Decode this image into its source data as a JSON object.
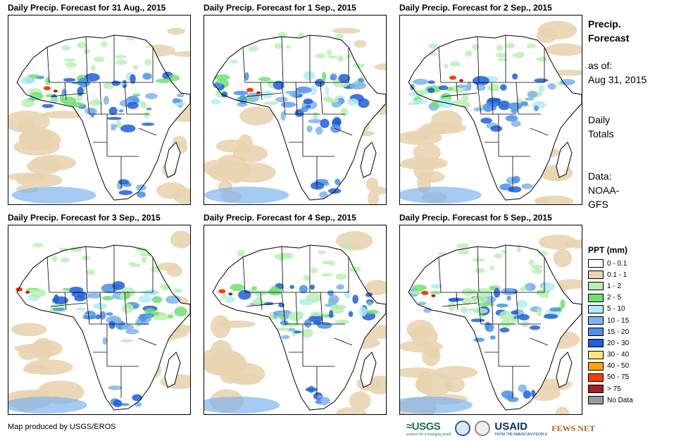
{
  "panels": [
    {
      "title": "Daily Precip. Forecast for 31 Aug., 2015",
      "variant": 0
    },
    {
      "title": "Daily Precip. Forecast for 1 Sep., 2015",
      "variant": 1
    },
    {
      "title": "Daily Precip. Forecast for 2 Sep., 2015",
      "variant": 2
    },
    {
      "title": "Daily Precip. Forecast for 3 Sep., 2015",
      "variant": 3
    },
    {
      "title": "Daily Precip. Forecast for 4 Sep., 2015",
      "variant": 4
    },
    {
      "title": "Daily Precip. Forecast for 5 Sep., 2015",
      "variant": 5
    }
  ],
  "side": {
    "title_line1": "Precip.",
    "title_line2": "Forecast",
    "asof_label": "as of:",
    "asof_date": "Aug 31, 2015",
    "totals_line1": "Daily",
    "totals_line2": "Totals",
    "data_label": "Data:",
    "data_line1": "NOAA-",
    "data_line2": "GFS"
  },
  "legend": {
    "title": "PPT (mm)",
    "items": [
      {
        "label": "0 - 0.1",
        "color": "#ffffff"
      },
      {
        "label": "0.1 - 1",
        "color": "#e8d4b0"
      },
      {
        "label": "1 - 2",
        "color": "#b6f0b0"
      },
      {
        "label": "2 - 5",
        "color": "#6fe06f"
      },
      {
        "label": "5 - 10",
        "color": "#b0ecf5"
      },
      {
        "label": "10 - 15",
        "color": "#7fb3ef"
      },
      {
        "label": "15 - 20",
        "color": "#4a90e8"
      },
      {
        "label": "20 - 30",
        "color": "#1f5fd8"
      },
      {
        "label": "30 - 40",
        "color": "#ffe680"
      },
      {
        "label": "40 - 50",
        "color": "#ffa200"
      },
      {
        "label": "50 - 75",
        "color": "#ff3b00"
      },
      {
        "label": "> 75",
        "color": "#a81e1e"
      },
      {
        "label": "No Data",
        "color": "#999999"
      }
    ]
  },
  "credit": "Map produced by USGS/EROS",
  "logos": {
    "usgs": "≈USGS",
    "usgs_tagline": "science for a changing world",
    "usaid": "USAID",
    "usaid_tagline": "FROM THE AMERICAN PEOPLE",
    "fews": "FEWS NET"
  }
}
